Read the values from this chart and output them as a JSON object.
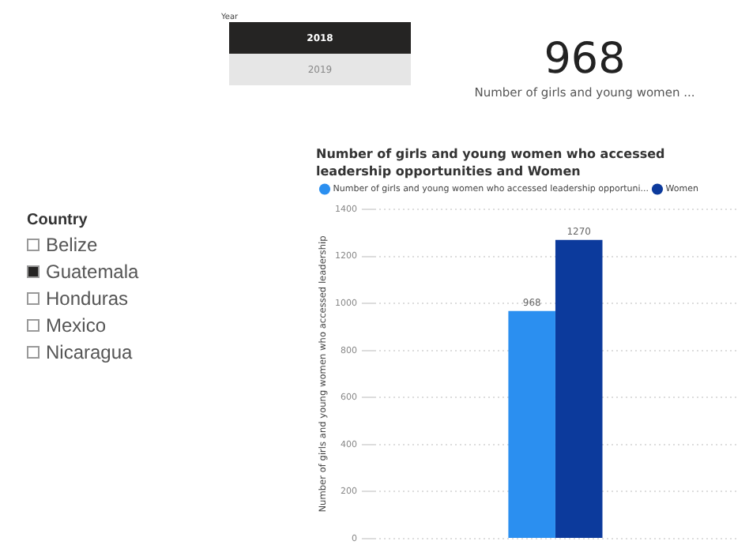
{
  "chart_data": [
    {
      "type": "other",
      "title": "Year",
      "categories": [
        "2018",
        "2019"
      ],
      "colors": [
        "#252423",
        "#e6e6e6"
      ]
    },
    {
      "type": "other",
      "title": "Number of girls and young women ...",
      "annotations": [
        "968"
      ]
    },
    {
      "type": "other",
      "title": "Country",
      "categories": [
        "Belize",
        "Guatemala",
        "Honduras",
        "Mexico",
        "Nicaragua"
      ],
      "colors": [
        "#ffffff",
        "#252423",
        "#ffffff",
        "#ffffff",
        "#ffffff"
      ]
    },
    {
      "type": "bar",
      "title": "Number of girls and young women who accessed leadership opportunities and Women",
      "ylabel": "Number of girls and young women who accessed leadership",
      "categories": [
        null
      ],
      "series": [
        {
          "name": "Number of girls and young women who accessed leadership opportuni...",
          "color": "#2b8ff0",
          "values": [
            968
          ]
        },
        {
          "name": "Women",
          "color": "#0c3a9c",
          "values": [
            1270
          ]
        }
      ],
      "ylim": [
        0,
        1400
      ],
      "yticks": [
        0,
        200,
        400,
        600,
        800,
        1000,
        1200,
        1400
      ],
      "grid": "y",
      "legend": "top left",
      "data_labels": true
    }
  ]
}
